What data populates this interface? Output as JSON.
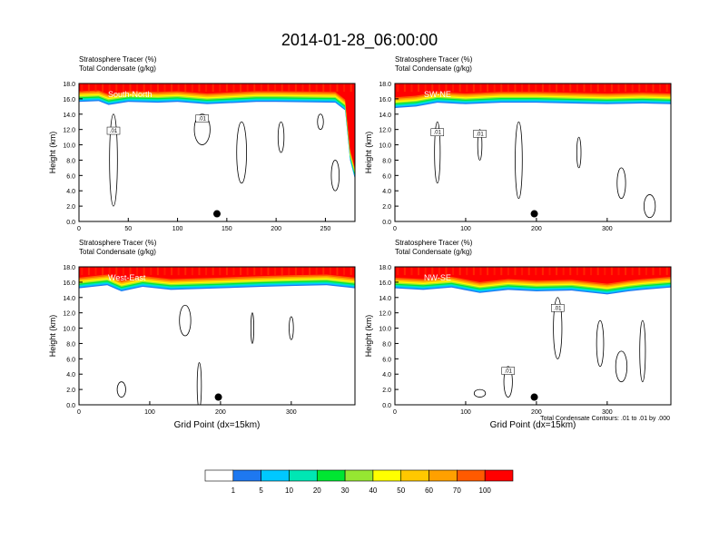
{
  "title": "2014-01-28_06:00:00",
  "colors": {
    "levels": [
      "#ffffff",
      "#1e78f0",
      "#00c8ff",
      "#00e6b4",
      "#00e632",
      "#96e632",
      "#ffff00",
      "#ffc800",
      "#ffa000",
      "#ff5a00",
      "#ff0000"
    ],
    "contour": "#000000"
  },
  "colorbar": {
    "labels": [
      "1",
      "5",
      "10",
      "20",
      "30",
      "40",
      "50",
      "60",
      "70",
      "100"
    ]
  },
  "note": "Total Condensate Contours: .01 to .01 by .000",
  "chart_data": [
    {
      "type": "heatmap",
      "title_lines": [
        "Stratosphere Tracer   (%)",
        "Total Condensate   (g/kg)"
      ],
      "inset_label": "South-North",
      "ylabel": "Height (km)",
      "xlabel": "",
      "xlim": [
        0,
        280
      ],
      "ylim": [
        0,
        18
      ],
      "x_ticks": [
        0,
        50,
        100,
        150,
        200,
        250
      ],
      "y_ticks": [
        "0.0",
        "2.0",
        "4.0",
        "6.0",
        "8.0",
        "10.0",
        "12.0",
        "14.0",
        "16.0",
        "18.0"
      ],
      "contour_labels": [
        ".01",
        ".01"
      ],
      "marker_x": 140,
      "tropopause": [
        [
          0,
          15.6
        ],
        [
          20,
          15.7
        ],
        [
          30,
          15.2
        ],
        [
          50,
          15.6
        ],
        [
          80,
          15.5
        ],
        [
          100,
          15.6
        ],
        [
          130,
          15.3
        ],
        [
          180,
          15.6
        ],
        [
          200,
          15.6
        ],
        [
          260,
          15.5
        ],
        [
          270,
          14.5
        ],
        [
          275,
          8
        ],
        [
          280,
          5.5
        ]
      ]
    },
    {
      "type": "heatmap",
      "title_lines": [
        "Stratosphere Tracer   (%)",
        "Total Condensate   (g/kg)"
      ],
      "inset_label": "SW-NE",
      "ylabel": "Height (km)",
      "xlabel": "",
      "xlim": [
        0,
        390
      ],
      "ylim": [
        0,
        18
      ],
      "x_ticks": [
        0,
        100,
        200,
        300
      ],
      "y_ticks": [
        "0.0",
        "2.0",
        "4.0",
        "6.0",
        "8.0",
        "10.0",
        "12.0",
        "14.0",
        "16.0",
        "18.0"
      ],
      "contour_labels": [
        ".01",
        ".01"
      ],
      "marker_x": 197,
      "tropopause": [
        [
          0,
          14.8
        ],
        [
          30,
          15.0
        ],
        [
          60,
          15.5
        ],
        [
          100,
          15.3
        ],
        [
          150,
          15.5
        ],
        [
          200,
          15.5
        ],
        [
          250,
          15.4
        ],
        [
          300,
          15.3
        ],
        [
          350,
          15.4
        ],
        [
          390,
          15.3
        ]
      ]
    },
    {
      "type": "heatmap",
      "title_lines": [
        "Stratosphere Tracer   (%)",
        "Total Condensate   (g/kg)"
      ],
      "inset_label": "West-East",
      "ylabel": "Height (km)",
      "xlabel": "Grid Point (dx=15km)",
      "xlim": [
        0,
        390
      ],
      "ylim": [
        0,
        18
      ],
      "x_ticks": [
        0,
        100,
        200,
        300
      ],
      "y_ticks": [
        "0.0",
        "2.0",
        "4.0",
        "6.0",
        "8.0",
        "10.0",
        "12.0",
        "14.0",
        "16.0",
        "18.0"
      ],
      "contour_labels": [],
      "marker_x": 197,
      "tropopause": [
        [
          0,
          15.2
        ],
        [
          40,
          15.6
        ],
        [
          60,
          14.8
        ],
        [
          90,
          15.4
        ],
        [
          130,
          15.0
        ],
        [
          200,
          15.2
        ],
        [
          260,
          15.4
        ],
        [
          300,
          15.5
        ],
        [
          350,
          15.6
        ],
        [
          390,
          15.2
        ]
      ]
    },
    {
      "type": "heatmap",
      "title_lines": [
        "Stratosphere Tracer   (%)",
        "Total Condensate   (g/kg)"
      ],
      "inset_label": "NW-SE",
      "ylabel": "Height (km)",
      "xlabel": "Grid Point (dx=15km)",
      "xlim": [
        0,
        390
      ],
      "ylim": [
        0,
        18
      ],
      "x_ticks": [
        0,
        100,
        200,
        300
      ],
      "y_ticks": [
        "0.0",
        "2.0",
        "4.0",
        "6.0",
        "8.0",
        "10.0",
        "12.0",
        "14.0",
        "16.0",
        "18.0"
      ],
      "contour_labels": [
        ".01",
        ".01"
      ],
      "marker_x": 197,
      "tropopause": [
        [
          0,
          15.2
        ],
        [
          40,
          15.0
        ],
        [
          80,
          15.3
        ],
        [
          120,
          14.6
        ],
        [
          160,
          15.0
        ],
        [
          200,
          14.8
        ],
        [
          250,
          14.9
        ],
        [
          300,
          14.4
        ],
        [
          330,
          14.8
        ],
        [
          350,
          15.0
        ],
        [
          390,
          15.3
        ]
      ]
    }
  ]
}
